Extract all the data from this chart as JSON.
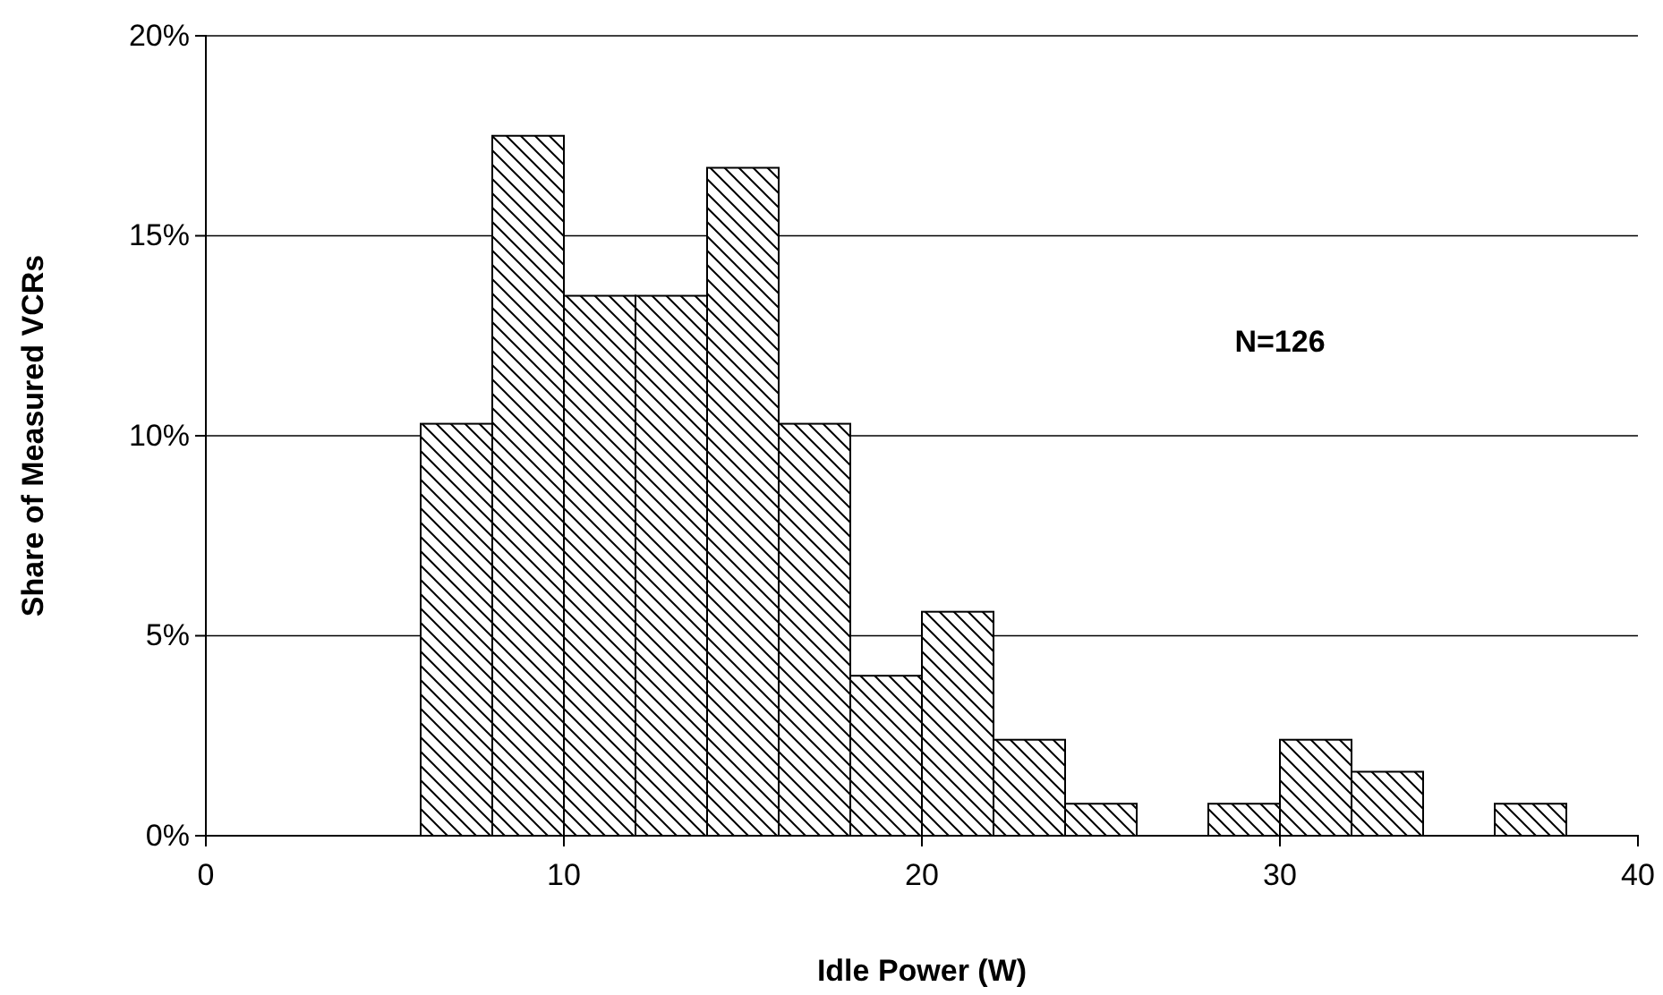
{
  "chart_data": {
    "type": "histogram",
    "xlabel": "Idle Power (W)",
    "ylabel": "Share of Measured VCRs",
    "bins": [
      6,
      8,
      10,
      12,
      14,
      16,
      18,
      20,
      22,
      24,
      26,
      28,
      30,
      32,
      34,
      36,
      38
    ],
    "values": [
      10.3,
      17.5,
      13.5,
      13.5,
      16.7,
      10.3,
      4.0,
      5.6,
      2.4,
      0.8,
      0,
      0.8,
      2.4,
      1.6,
      0,
      0.8
    ],
    "xlim": [
      0,
      40
    ],
    "xticks": [
      0,
      10,
      20,
      30,
      40
    ],
    "ylim": [
      0,
      20
    ],
    "yticks": [
      {
        "value": 0,
        "label": "0%"
      },
      {
        "value": 5,
        "label": "5%"
      },
      {
        "value": 10,
        "label": "10%"
      },
      {
        "value": 15,
        "label": "15%"
      },
      {
        "value": 20,
        "label": "20%"
      }
    ],
    "grid": "y",
    "annotations": [
      "N=126"
    ]
  }
}
